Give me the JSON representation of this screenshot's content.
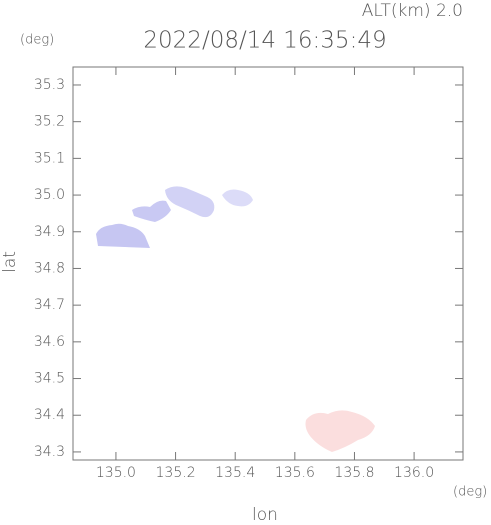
{
  "chart_data": {
    "type": "map",
    "title": "2022/08/14 16:35:49",
    "subtitle": "ALT(km) 2.0",
    "x_label": "lon",
    "x_unit": "(deg)",
    "y_label": "lat",
    "y_unit": "(deg)",
    "xlim": [
      134.856,
      136.164
    ],
    "ylim": [
      34.278,
      35.349
    ],
    "xticks": [
      {
        "value": 135,
        "label": "135.0"
      },
      135.2,
      135.4,
      135.6,
      135.8,
      {
        "value": 136,
        "label": "136.0"
      }
    ],
    "yticks": [
      {
        "value": 34.3,
        "label": "34.3"
      },
      34.4,
      34.5,
      34.6,
      34.7,
      34.8,
      34.9,
      {
        "value": 35,
        "label": "35.0"
      },
      35.1,
      35.2,
      35.3
    ]
  }
}
